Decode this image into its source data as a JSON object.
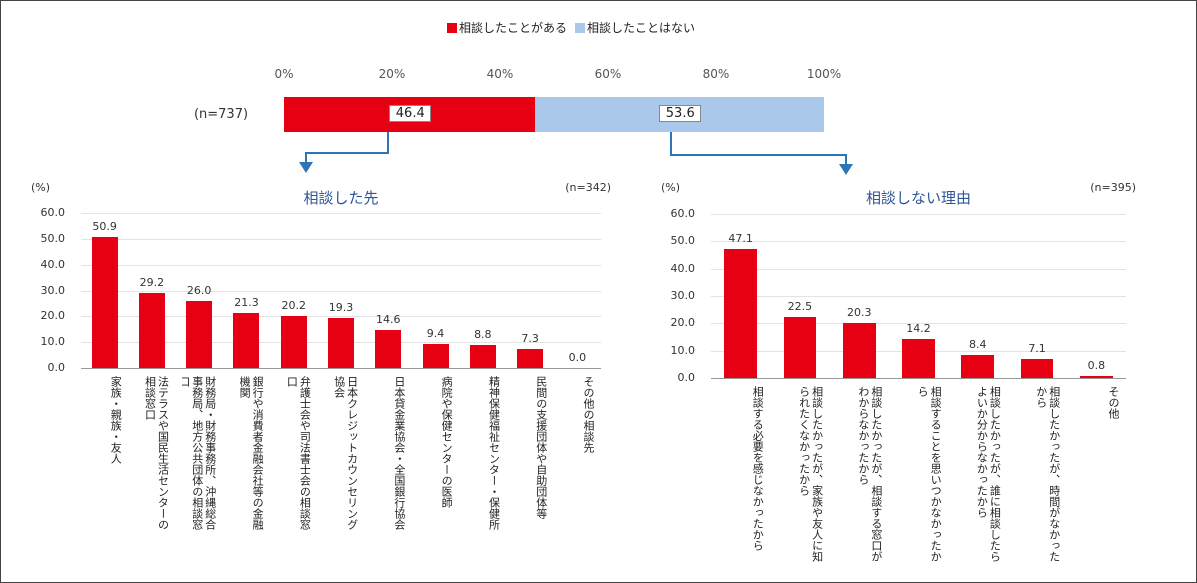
{
  "chart_data": [
    {
      "type": "stacked_bar",
      "categories": [
        "(n=737)"
      ],
      "series": [
        {
          "name": "相談したことがある",
          "color": "#e60012",
          "values": [
            46.4
          ]
        },
        {
          "name": "相談したことはない",
          "color": "#a9c8ea",
          "values": [
            53.6
          ]
        }
      ],
      "xlim": [
        0,
        100
      ],
      "xticks": [
        {
          "value": 0,
          "label": "0%"
        },
        {
          "value": 20,
          "label": "20%"
        },
        {
          "value": 40,
          "label": "40%"
        },
        {
          "value": 60,
          "label": "60%"
        },
        {
          "value": 80,
          "label": "80%"
        },
        {
          "value": 100,
          "label": "100%"
        }
      ]
    },
    {
      "type": "bar",
      "title": "相談した先",
      "y_label": "(%)",
      "note": "(n=342)",
      "color": "#e60012",
      "grid": true,
      "categories": [
        "家族・親族・友人",
        "法テラスや国民生活センターの相談窓口",
        "財務局・財務事務所、沖縄総合事務局、地方公共団体の相談窓口",
        "銀行や消費者金融会社等の金融機関",
        "弁護士会や司法書士会の相談窓口",
        "日本クレジットカウンセリング協会",
        "日本貸金業協会・全国銀行協会",
        "病院や保健センターの医師",
        "精神保健福祉センター・保健所",
        "民間の支援団体や自助団体等",
        "その他の相談先"
      ],
      "values": [
        50.9,
        29.2,
        26.0,
        21.3,
        20.2,
        19.3,
        14.6,
        9.4,
        8.8,
        7.3,
        0.0
      ],
      "value_labels": [
        "50.9",
        "29.2",
        "26.0",
        "21.3",
        "20.2",
        "19.3",
        "14.6",
        "9.4",
        "8.8",
        "7.3",
        "0.0"
      ],
      "ylim": [
        0,
        60
      ],
      "yticks": [
        {
          "value": 0,
          "label": "0.0"
        },
        {
          "value": 10,
          "label": "10.0"
        },
        {
          "value": 20,
          "label": "20.0"
        },
        {
          "value": 30,
          "label": "30.0"
        },
        {
          "value": 40,
          "label": "40.0"
        },
        {
          "value": 50,
          "label": "50.0"
        },
        {
          "value": 60,
          "label": "60.0"
        }
      ]
    },
    {
      "type": "bar",
      "title": "相談しない理由",
      "y_label": "(%)",
      "note": "(n=395)",
      "color": "#e60012",
      "grid": true,
      "categories": [
        "相談する必要を感じなかったから",
        "相談したかったが、家族や友人に知られたくなかったから",
        "相談したかったが、相談する窓口がわからなかったから",
        "相談することを思いつかなかったから",
        "相談したかったが、誰に相談したらよいか分からなかったから",
        "相談したかったが、時間がなかったから",
        "その他"
      ],
      "values": [
        47.1,
        22.5,
        20.3,
        14.2,
        8.4,
        7.1,
        0.8
      ],
      "ylim": [
        0,
        60
      ],
      "yticks": [
        {
          "value": 0,
          "label": "0.0"
        },
        {
          "value": 10,
          "label": "10.0"
        },
        {
          "value": 20,
          "label": "20.0"
        },
        {
          "value": 30,
          "label": "30.0"
        },
        {
          "value": 40,
          "label": "40.0"
        },
        {
          "value": 50,
          "label": "50.0"
        },
        {
          "value": 60,
          "label": "60.0"
        }
      ]
    }
  ]
}
